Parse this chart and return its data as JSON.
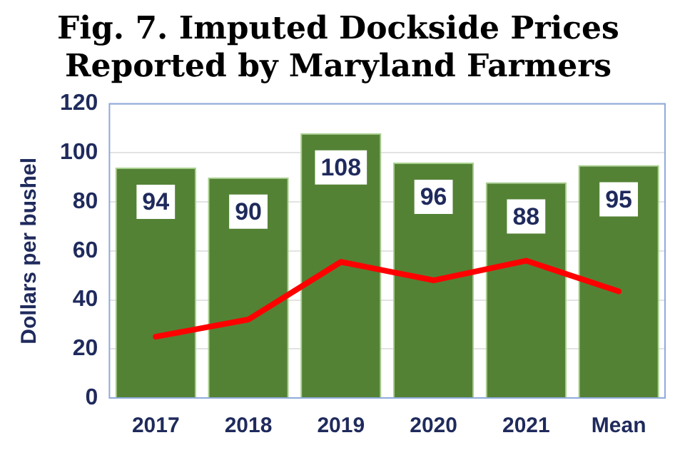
{
  "chart_data": {
    "type": "bar",
    "title": "Fig. 7. Imputed Dockside Prices\nReported by Maryland Farmers",
    "ylabel": "Dollars per bushel",
    "categories": [
      "2017",
      "2018",
      "2019",
      "2020",
      "2021",
      "Mean"
    ],
    "series": [
      {
        "color": "#548235",
        "values": [
          94,
          90,
          108,
          96,
          88,
          95
        ],
        "value_labels": [
          "94",
          "90",
          "108",
          "96",
          "88",
          "95"
        ]
      },
      {
        "type": "line",
        "color": "#ff0000",
        "values": [
          25,
          32,
          55.5,
          48,
          56,
          43.5
        ]
      }
    ],
    "ylim": [
      0,
      120
    ],
    "yticks": [
      0,
      20,
      40,
      60,
      80,
      100,
      120
    ],
    "grid": "y",
    "legend": false
  }
}
